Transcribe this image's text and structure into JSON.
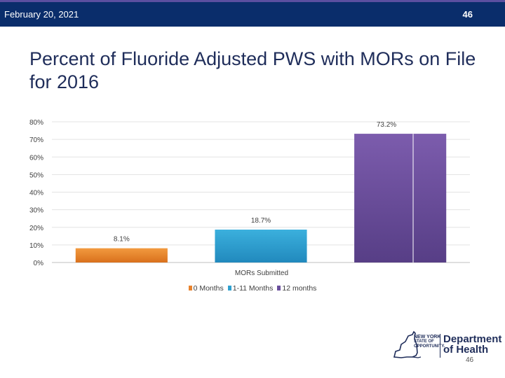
{
  "header": {
    "date": "February 20, 2021",
    "slide_number": "46"
  },
  "title": "Percent of Fluoride Adjusted PWS with MORs on File for 2016",
  "chart_data": {
    "type": "bar",
    "title": "Percent of Fluoride Adjusted PWS with MORs on File for 2016",
    "xlabel": "MORs Submitted",
    "ylabel": "",
    "ylim": [
      0,
      80
    ],
    "yticks": [
      "0%",
      "10%",
      "20%",
      "30%",
      "40%",
      "50%",
      "60%",
      "70%",
      "80%"
    ],
    "grid": true,
    "legend_position": "bottom",
    "series": [
      {
        "name": "0 Months",
        "value": 8.1,
        "label": "8.1%",
        "color": "#e8832e"
      },
      {
        "name": "1-11 Months",
        "value": 18.7,
        "label": "18.7%",
        "color": "#2fa0cf"
      },
      {
        "name": "12 months",
        "value": 73.2,
        "label": "73.2%",
        "color": "#6a4f9c"
      }
    ]
  },
  "logo": {
    "state_line1": "NEW YORK",
    "state_line2": "STATE OF",
    "state_line3": "OPPORTUNITY.",
    "dept_line1": "Department",
    "dept_line2": "of Health"
  },
  "footer": {
    "page_number": "46"
  }
}
